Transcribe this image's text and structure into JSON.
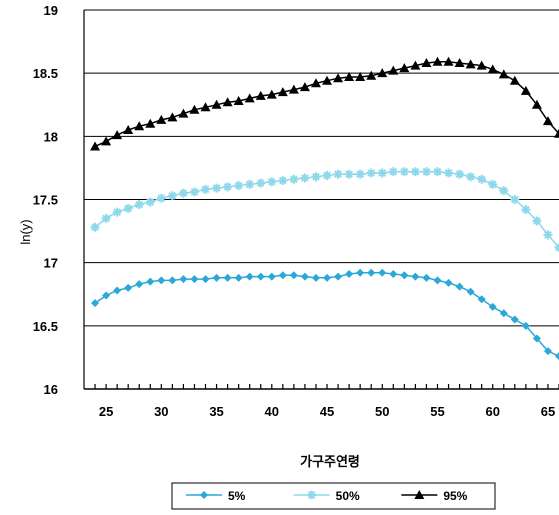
{
  "chart_data": {
    "type": "line",
    "title": "",
    "xlabel": "가구주연령",
    "ylabel": "ln(y)",
    "xlim": [
      23,
      66
    ],
    "ylim": [
      16,
      19
    ],
    "x_ticks": [
      25,
      30,
      35,
      40,
      45,
      50,
      55,
      60,
      65
    ],
    "y_ticks": [
      16,
      16.5,
      17,
      17.5,
      18,
      18.5,
      19
    ],
    "grid": "horizontal",
    "legend_position": "bottom",
    "x": [
      24,
      25,
      26,
      27,
      28,
      29,
      30,
      31,
      32,
      33,
      34,
      35,
      36,
      37,
      38,
      39,
      40,
      41,
      42,
      43,
      44,
      45,
      46,
      47,
      48,
      49,
      50,
      51,
      52,
      53,
      54,
      55,
      56,
      57,
      58,
      59,
      60,
      61,
      62,
      63,
      64,
      65,
      66
    ],
    "series": [
      {
        "name": "5%",
        "color": "#2aa8d8",
        "marker": "diamond",
        "values": [
          16.68,
          16.74,
          16.78,
          16.8,
          16.83,
          16.85,
          16.86,
          16.86,
          16.87,
          16.87,
          16.87,
          16.88,
          16.88,
          16.88,
          16.89,
          16.89,
          16.89,
          16.9,
          16.9,
          16.89,
          16.88,
          16.88,
          16.89,
          16.91,
          16.92,
          16.92,
          16.92,
          16.91,
          16.9,
          16.89,
          16.88,
          16.86,
          16.84,
          16.81,
          16.77,
          16.71,
          16.65,
          16.6,
          16.55,
          16.5,
          16.4,
          16.3,
          16.26
        ]
      },
      {
        "name": "50%",
        "color": "#8ed8ec",
        "marker": "asterisk",
        "values": [
          17.28,
          17.35,
          17.4,
          17.43,
          17.46,
          17.48,
          17.51,
          17.53,
          17.55,
          17.56,
          17.58,
          17.59,
          17.6,
          17.61,
          17.62,
          17.63,
          17.64,
          17.65,
          17.66,
          17.67,
          17.68,
          17.69,
          17.7,
          17.7,
          17.7,
          17.71,
          17.71,
          17.72,
          17.72,
          17.72,
          17.72,
          17.72,
          17.71,
          17.7,
          17.68,
          17.66,
          17.62,
          17.57,
          17.5,
          17.42,
          17.33,
          17.22,
          17.12
        ]
      },
      {
        "name": "95%",
        "color": "#000000",
        "marker": "triangle",
        "values": [
          17.92,
          17.96,
          18.01,
          18.05,
          18.08,
          18.1,
          18.13,
          18.15,
          18.18,
          18.21,
          18.23,
          18.25,
          18.27,
          18.28,
          18.3,
          18.32,
          18.33,
          18.35,
          18.37,
          18.39,
          18.42,
          18.44,
          18.46,
          18.47,
          18.47,
          18.48,
          18.5,
          18.52,
          18.54,
          18.56,
          18.58,
          18.59,
          18.59,
          18.58,
          18.57,
          18.56,
          18.53,
          18.49,
          18.44,
          18.36,
          18.25,
          18.12,
          18.02
        ]
      }
    ]
  }
}
